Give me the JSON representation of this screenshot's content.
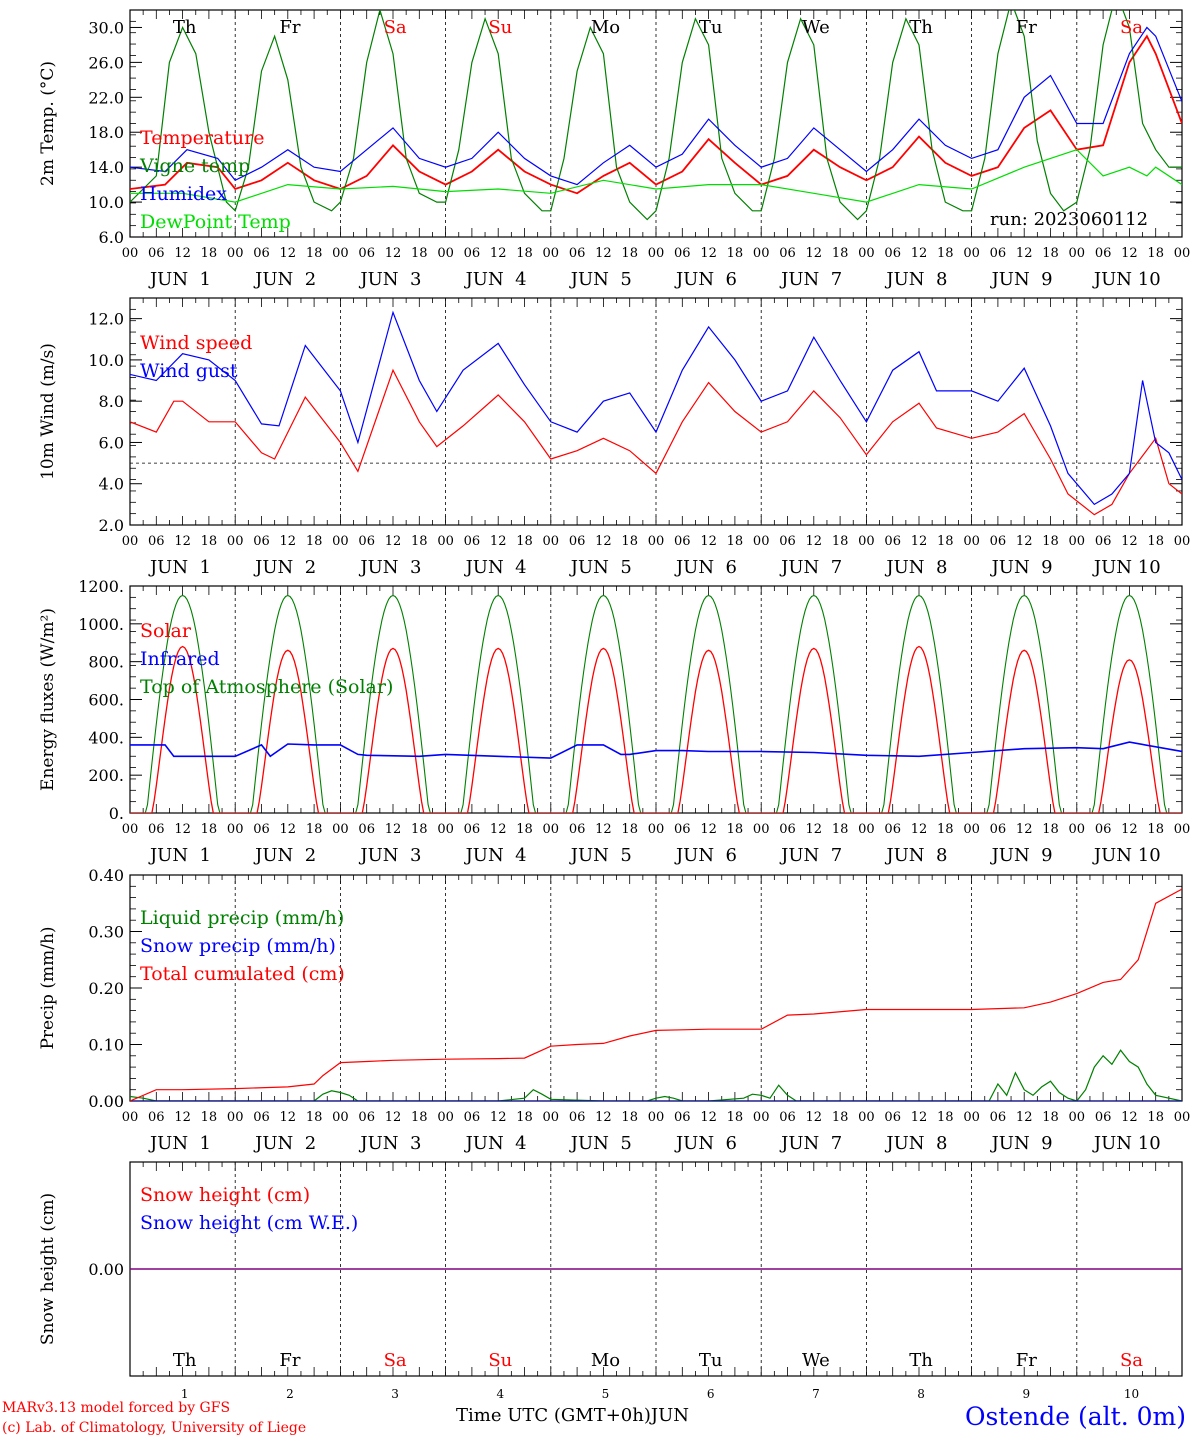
{
  "run_label": "run: 2023060112",
  "footer": {
    "model_line": "MARv3.13 model forced by GFS",
    "copyright": "(c) Lab. of Climatology, University of Liege",
    "time_axis": "Time UTC (GMT+0h)",
    "month": "JUN",
    "station": "Ostende (alt. 0m)"
  },
  "weekdays": [
    "Th",
    "Fr",
    "Sa",
    "Su",
    "Mo",
    "Tu",
    "We",
    "Th",
    "Fr",
    "Sa"
  ],
  "weekend_color": "#ff0000",
  "hour_ticks": [
    "00",
    "06",
    "12",
    "18"
  ],
  "end_hour_tick": "00",
  "date_labels": [
    "JUN  1",
    "JUN  2",
    "JUN  3",
    "JUN  4",
    "JUN  5",
    "JUN  6",
    "JUN  7",
    "JUN  8",
    "JUN  9",
    "JUN 10"
  ],
  "day_numbers": [
    "1",
    "2",
    "3",
    "4",
    "5",
    "6",
    "7",
    "8",
    "9",
    "10"
  ],
  "colors": {
    "red": "#ff0000",
    "green": "#008000",
    "blue": "#0000ff",
    "lime": "#00dd00",
    "purple": "#800080"
  },
  "chart_data": [
    {
      "type": "line",
      "ylabel": "2m Temp. (°C)",
      "ylim": [
        6,
        32
      ],
      "yticks": [
        "6.0",
        "10.0",
        "14.0",
        "18.0",
        "22.0",
        "26.0",
        "30.0"
      ],
      "x_unit": "hours since 2023-06-01 00 UTC",
      "xlim": [
        0,
        240
      ],
      "series": [
        {
          "name": "Temperature",
          "color": "#ff0000",
          "x": [
            0,
            8,
            13,
            20,
            24,
            30,
            36,
            42,
            48,
            54,
            60,
            66,
            72,
            78,
            84,
            90,
            96,
            102,
            108,
            114,
            120,
            126,
            132,
            138,
            144,
            150,
            156,
            162,
            168,
            174,
            180,
            186,
            192,
            198,
            204,
            210,
            216,
            222,
            228,
            232,
            234,
            240
          ],
          "y": [
            11.5,
            12,
            14.5,
            14,
            11.5,
            12.5,
            14.5,
            12.5,
            11.5,
            13,
            16.5,
            13.5,
            12,
            13.5,
            16,
            13.5,
            12,
            11,
            13,
            14.5,
            12,
            13.5,
            17.2,
            14.5,
            12,
            13,
            16,
            14,
            12.5,
            14,
            17.5,
            14.5,
            13,
            14,
            18.5,
            20.5,
            16,
            16.5,
            26,
            29,
            27,
            19
          ]
        },
        {
          "name": "Vigne temp",
          "color": "#008000",
          "x": [
            0,
            6,
            9,
            12,
            15,
            18,
            22,
            24,
            27,
            30,
            33,
            36,
            39,
            42,
            46,
            48,
            51,
            54,
            57,
            60,
            63,
            66,
            70,
            72,
            75,
            78,
            81,
            84,
            87,
            90,
            94,
            96,
            99,
            102,
            105,
            108,
            111,
            114,
            118,
            120,
            123,
            126,
            129,
            132,
            135,
            138,
            142,
            144,
            147,
            150,
            153,
            156,
            159,
            162,
            166,
            168,
            171,
            174,
            177,
            180,
            183,
            186,
            190,
            192,
            195,
            198,
            201,
            204,
            207,
            210,
            213,
            216,
            219,
            222,
            225,
            228,
            231,
            234,
            237,
            240
          ],
          "y": [
            10,
            13,
            26,
            30,
            27,
            18,
            10,
            9,
            14,
            25,
            29,
            24,
            14,
            10,
            9,
            10,
            15,
            26,
            32,
            27,
            15,
            11,
            10,
            10,
            16,
            26,
            31,
            27,
            15,
            11,
            9,
            9,
            15,
            25,
            30,
            27,
            14,
            10,
            8,
            9,
            15,
            26,
            31,
            28,
            15,
            11,
            9,
            9,
            15,
            26,
            31,
            28,
            15,
            10,
            8,
            9,
            15,
            26,
            31,
            28,
            16,
            10,
            9,
            9,
            15,
            27,
            33,
            29,
            17,
            11,
            9,
            10,
            16,
            28,
            34,
            30,
            19,
            16,
            14,
            14
          ]
        },
        {
          "name": "Humidex",
          "color": "#0000ff",
          "x": [
            0,
            8,
            13,
            20,
            24,
            30,
            36,
            42,
            48,
            54,
            60,
            66,
            72,
            78,
            84,
            90,
            96,
            102,
            108,
            114,
            120,
            126,
            132,
            138,
            144,
            150,
            156,
            162,
            168,
            174,
            180,
            186,
            192,
            198,
            204,
            210,
            216,
            222,
            228,
            232,
            234,
            240
          ],
          "y": [
            14,
            13.5,
            16,
            15,
            12.5,
            14,
            16,
            14,
            13.5,
            16,
            18.5,
            15,
            14,
            15,
            18,
            15,
            13,
            12,
            14.5,
            16.5,
            14,
            15.5,
            19.5,
            16.5,
            14,
            15,
            18.5,
            16,
            13.5,
            16,
            19.5,
            16.5,
            15,
            16,
            22,
            24.5,
            19,
            19,
            27,
            30,
            29,
            21.5
          ]
        },
        {
          "name": "DewPoint Temp",
          "color": "#00dd00",
          "x": [
            0,
            12,
            24,
            36,
            48,
            60,
            72,
            84,
            96,
            108,
            120,
            132,
            144,
            156,
            168,
            180,
            192,
            204,
            216,
            222,
            228,
            232,
            234,
            240
          ],
          "y": [
            11,
            11,
            10,
            12,
            11.5,
            11.8,
            11.2,
            11.5,
            11,
            12.5,
            11.5,
            12,
            12,
            11,
            10,
            12,
            11.5,
            14,
            16,
            13,
            14,
            13,
            14,
            12
          ]
        }
      ]
    },
    {
      "type": "line",
      "ylabel": "10m Wind (m/s)",
      "ylim": [
        2,
        13
      ],
      "yticks": [
        "2.0",
        "4.0",
        "6.0",
        "8.0",
        "10.0",
        "12.0"
      ],
      "reference_line": 5,
      "x_unit": "hours since 2023-06-01 00 UTC",
      "xlim": [
        0,
        240
      ],
      "series": [
        {
          "name": "Wind speed",
          "color": "#ff0000",
          "x": [
            0,
            6,
            10,
            12,
            18,
            24,
            30,
            33,
            40,
            48,
            52,
            60,
            66,
            70,
            76,
            84,
            90,
            96,
            102,
            108,
            114,
            120,
            126,
            132,
            138,
            144,
            150,
            156,
            162,
            168,
            174,
            180,
            184,
            192,
            198,
            204,
            210,
            214,
            220,
            224,
            228,
            234,
            237,
            240
          ],
          "y": [
            7,
            6.5,
            8,
            8,
            7,
            7,
            5.5,
            5.2,
            8.2,
            6,
            4.6,
            9.5,
            7,
            5.8,
            6.8,
            8.3,
            7,
            5.2,
            5.6,
            6.2,
            5.6,
            4.5,
            7,
            8.9,
            7.5,
            6.5,
            7,
            8.5,
            7.2,
            5.4,
            7,
            7.9,
            6.7,
            6.2,
            6.5,
            7.4,
            5.2,
            3.5,
            2.5,
            3,
            4.5,
            6.2,
            4,
            3.5
          ]
        },
        {
          "name": "Wind gust",
          "color": "#0000ff",
          "x": [
            0,
            6,
            12,
            18,
            24,
            30,
            34,
            40,
            48,
            52,
            60,
            66,
            70,
            76,
            84,
            90,
            96,
            102,
            108,
            114,
            120,
            126,
            132,
            138,
            144,
            150,
            156,
            162,
            168,
            174,
            180,
            184,
            192,
            198,
            204,
            210,
            214,
            220,
            224,
            228,
            231,
            234,
            237,
            240
          ],
          "y": [
            9.3,
            9,
            10.3,
            10,
            9,
            6.9,
            6.8,
            10.7,
            8.5,
            6,
            12.3,
            9,
            7.5,
            9.5,
            10.8,
            8.8,
            7,
            6.5,
            8,
            8.4,
            6.5,
            9.5,
            11.6,
            10,
            8,
            8.5,
            11.1,
            9,
            7,
            9.5,
            10.4,
            8.5,
            8.5,
            8,
            9.6,
            6.8,
            4.5,
            3,
            3.5,
            4.5,
            9,
            6,
            5.5,
            4.2
          ]
        }
      ]
    },
    {
      "type": "line",
      "ylabel": "Energy fluxes (W/m²)",
      "ylim": [
        0,
        1200
      ],
      "yticks": [
        "0.",
        "200.",
        "400.",
        "600.",
        "800.",
        "1000.",
        "1200."
      ],
      "x_unit": "hours since 2023-06-01 00 UTC",
      "xlim": [
        0,
        240
      ],
      "daily_peaks": {
        "solar": [
          880,
          860,
          870,
          870,
          870,
          860,
          870,
          880,
          860,
          810
        ],
        "top_of_atmosphere": [
          1150,
          1150,
          1150,
          1150,
          1150,
          1150,
          1150,
          1150,
          1150,
          1150
        ]
      },
      "series": [
        {
          "name": "Solar",
          "color": "#ff0000"
        },
        {
          "name": "Infrared",
          "color": "#0000ff",
          "x": [
            0,
            8,
            10,
            24,
            30,
            32,
            36,
            42,
            48,
            52,
            54,
            66,
            72,
            84,
            96,
            102,
            108,
            112,
            114,
            120,
            126,
            132,
            144,
            156,
            168,
            180,
            192,
            204,
            216,
            222,
            228,
            240
          ],
          "y": [
            360,
            360,
            300,
            300,
            360,
            300,
            365,
            360,
            360,
            310,
            305,
            300,
            310,
            300,
            290,
            360,
            360,
            310,
            310,
            330,
            330,
            325,
            325,
            320,
            305,
            300,
            320,
            340,
            345,
            340,
            375,
            325
          ]
        },
        {
          "name": "Top of Atmosphere (Solar)",
          "color": "#008000"
        }
      ]
    },
    {
      "type": "line",
      "ylabel": "Precip (mm/h)",
      "ylim": [
        0,
        0.4
      ],
      "yticks": [
        "0.00",
        "0.10",
        "0.20",
        "0.30",
        "0.40"
      ],
      "x_unit": "hours since 2023-06-01 00 UTC",
      "xlim": [
        0,
        240
      ],
      "series": [
        {
          "name": "Liquid precip (mm/h)",
          "color": "#008000",
          "x": [
            0,
            3,
            6,
            24,
            42,
            44,
            46,
            48,
            50,
            52,
            60,
            84,
            90,
            92,
            94,
            96,
            108,
            118,
            120,
            122,
            124,
            126,
            128,
            132,
            140,
            142,
            144,
            146,
            148,
            150,
            152,
            154,
            160,
            196,
            198,
            200,
            202,
            204,
            206,
            208,
            210,
            212,
            214,
            216,
            218,
            220,
            222,
            224,
            226,
            228,
            230,
            232,
            234,
            240
          ],
          "y": [
            0.008,
            0.005,
            0,
            0,
            0,
            0.012,
            0.018,
            0.015,
            0.01,
            0,
            0,
            0,
            0.005,
            0.02,
            0.012,
            0.003,
            0,
            0,
            0.005,
            0.008,
            0.005,
            0,
            0,
            0,
            0.005,
            0.012,
            0.01,
            0.005,
            0.028,
            0.01,
            0,
            0,
            0,
            0,
            0.03,
            0.01,
            0.05,
            0.02,
            0.01,
            0.025,
            0.035,
            0.015,
            0.005,
            0,
            0.02,
            0.06,
            0.08,
            0.065,
            0.09,
            0.07,
            0.06,
            0.03,
            0.01,
            0
          ]
        },
        {
          "name": "Snow precip (mm/h)",
          "color": "#0000ff",
          "x": [
            0,
            240
          ],
          "y": [
            0,
            0
          ]
        },
        {
          "name": "Total cumulated (cm)",
          "color": "#ff0000",
          "x": [
            0,
            6,
            12,
            24,
            36,
            42,
            44,
            48,
            54,
            60,
            72,
            84,
            90,
            94,
            96,
            102,
            108,
            114,
            120,
            126,
            132,
            144,
            150,
            156,
            168,
            180,
            192,
            204,
            210,
            216,
            222,
            226,
            230,
            234,
            240
          ],
          "y": [
            0,
            0.02,
            0.02,
            0.022,
            0.025,
            0.03,
            0.045,
            0.068,
            0.07,
            0.072,
            0.074,
            0.075,
            0.076,
            0.09,
            0.097,
            0.1,
            0.102,
            0.115,
            0.125,
            0.126,
            0.127,
            0.127,
            0.152,
            0.154,
            0.162,
            0.162,
            0.162,
            0.165,
            0.175,
            0.19,
            0.21,
            0.215,
            0.25,
            0.35,
            0.375
          ]
        }
      ]
    },
    {
      "type": "line",
      "ylabel": "Snow height (cm)",
      "ylim": [
        -1,
        1
      ],
      "yticks": [
        "0.00"
      ],
      "x_unit": "hours since 2023-06-01 00 UTC",
      "xlim": [
        0,
        240
      ],
      "series": [
        {
          "name": "Snow height (cm)",
          "color": "#ff0000",
          "x": [
            0,
            240
          ],
          "y": [
            0,
            0
          ]
        },
        {
          "name": "Snow height (cm W.E.)",
          "color": "#0000ff",
          "x": [
            0,
            240
          ],
          "y": [
            0,
            0
          ]
        }
      ]
    }
  ]
}
